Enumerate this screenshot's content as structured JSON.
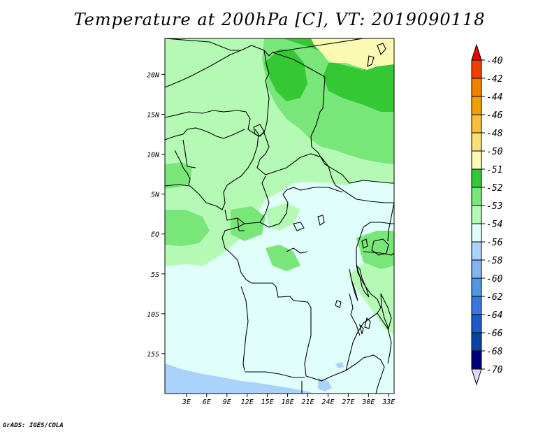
{
  "title": "Temperature at 200hPa [C], VT: 2019090118",
  "credit": "GrADS: IGES/COLA",
  "map": {
    "lat_range": [
      -20,
      24.5
    ],
    "lon_range": [
      -0.2,
      33.8
    ],
    "y_ticks": [
      {
        "value": 20,
        "label": "20N"
      },
      {
        "value": 15,
        "label": "15N"
      },
      {
        "value": 10,
        "label": "10N"
      },
      {
        "value": 5,
        "label": "5N"
      },
      {
        "value": 0,
        "label": "EQ"
      },
      {
        "value": -5,
        "label": "5S"
      },
      {
        "value": -10,
        "label": "10S"
      },
      {
        "value": -15,
        "label": "15S"
      }
    ],
    "x_ticks": [
      {
        "value": 3,
        "label": "3E"
      },
      {
        "value": 6,
        "label": "6E"
      },
      {
        "value": 9,
        "label": "9E"
      },
      {
        "value": 12,
        "label": "12E"
      },
      {
        "value": 15,
        "label": "15E"
      },
      {
        "value": 18,
        "label": "18E"
      },
      {
        "value": 21,
        "label": "21E"
      },
      {
        "value": 24,
        "label": "24E"
      },
      {
        "value": 27,
        "label": "27E"
      },
      {
        "value": 30,
        "label": "30E"
      },
      {
        "value": 33,
        "label": "33E"
      }
    ]
  },
  "colorbar": {
    "labels": [
      "-40",
      "-42",
      "-44",
      "-46",
      "-48",
      "-50",
      "-51",
      "-52",
      "-53",
      "-54",
      "-56",
      "-58",
      "-60",
      "-62",
      "-64",
      "-66",
      "-68",
      "-70"
    ],
    "colors": [
      "#f00000",
      "#f04000",
      "#f08200",
      "#f0a000",
      "#f6be3c",
      "#fae078",
      "#fafab4",
      "#34c834",
      "#78e678",
      "#b4fab4",
      "#e0fffa",
      "#aad2fa",
      "#82b4f0",
      "#5096e6",
      "#3c78dc",
      "#1e5ac8",
      "#0a46a0",
      "#000078",
      "#dcdcfa"
    ]
  },
  "fields": {
    "c52": "#34c834",
    "c53": "#78e678",
    "c54": "#b4fab4",
    "c56": "#e0fffa",
    "c58": "#aad2fa",
    "c51": "#fafab4"
  }
}
